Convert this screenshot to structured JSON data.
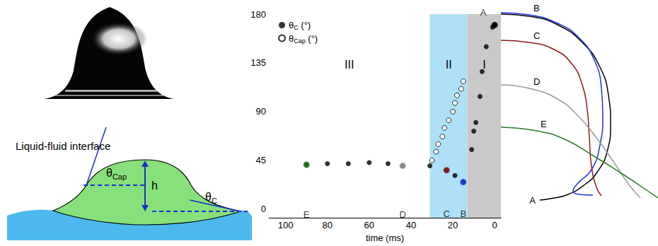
{
  "diagram": {
    "labels": {
      "interface": "Liquid-fluid interface",
      "theta_cap": "θCap",
      "height": "h",
      "theta_c": "θC"
    }
  },
  "chart_data": [
    {
      "type": "scatter",
      "x_label": "time (ms)",
      "xlim": [
        108,
        -3
      ],
      "xticks": [
        100,
        80,
        60,
        40,
        20,
        0
      ],
      "ylim": [
        -8,
        180
      ],
      "yticks": [
        0,
        45,
        90,
        135,
        180
      ],
      "grid": false,
      "legend": "upper left",
      "series": [
        {
          "name": "θC (°)",
          "color": "#000000",
          "marker": "circle",
          "x": [
            0,
            1,
            4,
            6,
            7,
            9,
            10,
            11,
            15,
            19,
            23,
            31,
            44,
            51,
            60,
            70,
            80,
            90
          ],
          "values": [
            170,
            168,
            150,
            127,
            104,
            80,
            72,
            55,
            25,
            31,
            36,
            40,
            40,
            42,
            43,
            42,
            42,
            41
          ]
        },
        {
          "name": "θCap (°)",
          "color": "#000000",
          "marker": "open_circle",
          "x": [
            30,
            28,
            27,
            25,
            24,
            22,
            20,
            19,
            18,
            16,
            15
          ],
          "values": [
            45,
            53,
            60,
            67,
            75,
            82,
            90,
            98,
            105,
            111,
            118
          ]
        }
      ],
      "points": [
        {
          "label": "A",
          "x": 0,
          "y": 170,
          "color": "#000000"
        },
        {
          "label": "B",
          "x": 15,
          "y": 25,
          "color": "#1f3de0"
        },
        {
          "label": "C",
          "x": 23,
          "y": 36,
          "color": "#8b1a1a"
        },
        {
          "label": "D",
          "x": 44,
          "y": 40,
          "color": "#9a9a9a"
        },
        {
          "label": "E",
          "x": 90,
          "y": 41,
          "color": "#1e7a1e"
        }
      ],
      "regions": [
        {
          "label": "III",
          "from": 108,
          "to": 31,
          "color": "#ffffff"
        },
        {
          "label": "II",
          "from": 31,
          "to": 13,
          "color": "#aee1f7"
        },
        {
          "label": "I",
          "from": 13,
          "to": -3,
          "color": "#c9c9c9"
        }
      ]
    },
    {
      "type": "line",
      "tick_labels": false,
      "xlim": [
        0,
        222
      ],
      "ylim": [
        0,
        275
      ],
      "series": [
        {
          "name": "A",
          "color": "#000000",
          "x": [
            0,
            40,
            80,
            115,
            140,
            152,
            155,
            150,
            135,
            120,
            95,
            70,
            55
          ],
          "values": [
            265,
            262,
            250,
            225,
            190,
            150,
            110,
            70,
            40,
            25,
            10,
            4,
            2
          ]
        },
        {
          "name": "B",
          "color": "#2030e0",
          "x": [
            0,
            40,
            80,
            110,
            132,
            142,
            144,
            140,
            128,
            108,
            102,
            110,
            130
          ],
          "values": [
            267,
            264,
            252,
            232,
            200,
            160,
            120,
            80,
            45,
            25,
            15,
            10,
            9
          ]
        },
        {
          "name": "C",
          "color": "#8b1a1a",
          "x": [
            0,
            40,
            75,
            100,
            115,
            122,
            125,
            128,
            135,
            142
          ],
          "values": [
            228,
            225,
            215,
            195,
            165,
            130,
            90,
            50,
            20,
            8
          ]
        },
        {
          "name": "D",
          "color": "#999999",
          "x": [
            0,
            40,
            80,
            110,
            135,
            160,
            180,
            197
          ],
          "values": [
            165,
            160,
            145,
            120,
            90,
            55,
            25,
            5
          ]
        },
        {
          "name": "E",
          "color": "#2a7a2a",
          "x": [
            0,
            50,
            90,
            130,
            170,
            200,
            222
          ],
          "values": [
            105,
            100,
            88,
            65,
            40,
            20,
            5
          ]
        }
      ]
    }
  ]
}
